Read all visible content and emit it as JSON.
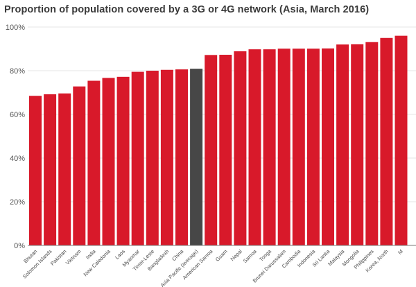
{
  "chart_data": {
    "type": "bar",
    "title": "Proportion of population covered by a 3G or 4G network (Asia, March 2016)",
    "xlabel": "",
    "ylabel": "",
    "ylim": [
      0,
      100
    ],
    "y_ticks": [
      "0%",
      "20%",
      "40%",
      "60%",
      "80%",
      "100%"
    ],
    "grid": true,
    "categories": [
      "Bhutan",
      "Solomon Islands",
      "Pakistan",
      "Vietnam",
      "India",
      "New Caledonia",
      "Laos",
      "Myanmar",
      "Timor-Leste",
      "Bangladesh",
      "China",
      "Asia Pacific (average)",
      "American Samoa",
      "Guam",
      "Nepal",
      "Samoa",
      "Tonga",
      "Brunei Darussalam",
      "Cambodia",
      "Indonesia",
      "Sri Lanka",
      "Malaysia",
      "Mongolia",
      "Philippines",
      "Korea, North",
      "M"
    ],
    "values": [
      68.5,
      69.2,
      69.6,
      72.8,
      75.4,
      76.7,
      77.2,
      79.5,
      80.0,
      80.4,
      80.6,
      80.9,
      87.2,
      87.3,
      88.9,
      89.8,
      89.8,
      90.1,
      90.1,
      90.1,
      90.2,
      92.0,
      92.1,
      93.1,
      95.0,
      96.0
    ],
    "highlight_index": 11,
    "colors": {
      "bar": "#d8192a",
      "highlight": "#474747",
      "grid": "#e6e6e6",
      "axis": "#777777"
    }
  }
}
